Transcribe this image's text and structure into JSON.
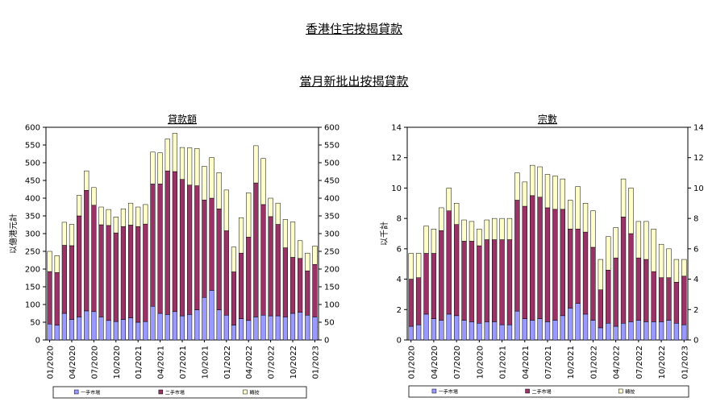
{
  "page": {
    "title": "香港住宅按揭貸款",
    "subtitle": "當月新批出按揭貸款"
  },
  "colors": {
    "first_hand": "#9999ff",
    "second_hand": "#993366",
    "refinance": "#ffffcc"
  },
  "chart_data": [
    {
      "type": "bar",
      "stacked": true,
      "title": "貸款額",
      "ylabel": "以億港元計",
      "ylim": [
        0,
        600
      ],
      "yticks": [
        0,
        50,
        100,
        150,
        200,
        250,
        300,
        350,
        400,
        450,
        500,
        550,
        600
      ],
      "categories": [
        "01/2020",
        "02/2020",
        "03/2020",
        "04/2020",
        "05/2020",
        "06/2020",
        "07/2020",
        "08/2020",
        "09/2020",
        "10/2020",
        "11/2020",
        "12/2020",
        "01/2021",
        "02/2021",
        "03/2021",
        "04/2021",
        "05/2021",
        "06/2021",
        "07/2021",
        "08/2021",
        "09/2021",
        "10/2021",
        "11/2021",
        "12/2021",
        "01/2022",
        "02/2022",
        "03/2022",
        "04/2022",
        "05/2022",
        "06/2022",
        "07/2022",
        "08/2022",
        "09/2022",
        "10/2022",
        "11/2022",
        "12/2022",
        "01/2023"
      ],
      "tick_labels": [
        "01/2020",
        "04/2020",
        "07/2020",
        "10/2020",
        "01/2021",
        "04/2021",
        "07/2021",
        "10/2021",
        "01/2022",
        "04/2022",
        "07/2022",
        "10/2022",
        "01/2023"
      ],
      "legend": [
        "一手市場",
        "二手市場",
        "轉按"
      ],
      "legend_position": "bottom",
      "series": [
        {
          "name": "一手市場",
          "values": [
            45,
            42,
            75,
            58,
            65,
            82,
            80,
            65,
            55,
            52,
            58,
            62,
            50,
            52,
            95,
            75,
            72,
            80,
            68,
            72,
            85,
            120,
            140,
            85,
            70,
            42,
            60,
            55,
            65,
            70,
            68,
            68,
            65,
            75,
            78,
            70,
            65
          ]
        },
        {
          "name": "二手市場",
          "values": [
            148,
            148,
            192,
            208,
            285,
            340,
            300,
            260,
            268,
            250,
            262,
            262,
            270,
            275,
            345,
            365,
            405,
            395,
            385,
            365,
            350,
            275,
            260,
            285,
            238,
            150,
            185,
            235,
            378,
            312,
            280,
            258,
            195,
            158,
            152,
            125,
            148
          ]
        },
        {
          "name": "轉按",
          "values": [
            57,
            48,
            65,
            60,
            58,
            55,
            50,
            50,
            45,
            45,
            50,
            62,
            55,
            55,
            90,
            88,
            90,
            108,
            90,
            105,
            105,
            95,
            115,
            102,
            115,
            70,
            100,
            125,
            105,
            130,
            52,
            60,
            80,
            100,
            50,
            50,
            52
          ]
        }
      ]
    },
    {
      "type": "bar",
      "stacked": true,
      "title": "宗數",
      "ylabel": "以千計",
      "ylim": [
        0,
        14
      ],
      "yticks": [
        0,
        2,
        4,
        6,
        8,
        10,
        12,
        14
      ],
      "categories": [
        "01/2020",
        "02/2020",
        "03/2020",
        "04/2020",
        "05/2020",
        "06/2020",
        "07/2020",
        "08/2020",
        "09/2020",
        "10/2020",
        "11/2020",
        "12/2020",
        "01/2021",
        "02/2021",
        "03/2021",
        "04/2021",
        "05/2021",
        "06/2021",
        "07/2021",
        "08/2021",
        "09/2021",
        "10/2021",
        "11/2021",
        "12/2021",
        "01/2022",
        "02/2022",
        "03/2022",
        "04/2022",
        "05/2022",
        "06/2022",
        "07/2022",
        "08/2022",
        "09/2022",
        "10/2022",
        "11/2022",
        "12/2022",
        "01/2023"
      ],
      "tick_labels": [
        "01/2020",
        "04/2020",
        "07/2020",
        "10/2020",
        "01/2021",
        "04/2021",
        "07/2021",
        "10/2021",
        "01/2022",
        "04/2022",
        "07/2022",
        "10/2022",
        "01/2023"
      ],
      "legend": [
        "一手市場",
        "二手市場",
        "轉按"
      ],
      "legend_position": "bottom",
      "series": [
        {
          "name": "一手市場",
          "values": [
            0.9,
            1.0,
            1.7,
            1.4,
            1.3,
            1.7,
            1.6,
            1.3,
            1.2,
            1.1,
            1.2,
            1.2,
            1.0,
            1.0,
            1.9,
            1.4,
            1.3,
            1.4,
            1.2,
            1.3,
            1.6,
            2.1,
            2.4,
            1.7,
            1.3,
            0.8,
            1.1,
            0.9,
            1.1,
            1.2,
            1.3,
            1.2,
            1.2,
            1.2,
            1.3,
            1.1,
            1.0
          ]
        },
        {
          "name": "二手市場",
          "values": [
            3.1,
            3.1,
            4.0,
            4.3,
            5.9,
            6.8,
            6.0,
            5.2,
            5.3,
            5.1,
            5.4,
            5.4,
            5.6,
            5.6,
            7.3,
            7.4,
            8.2,
            8.0,
            7.5,
            7.3,
            7.0,
            5.2,
            4.9,
            5.4,
            4.8,
            2.5,
            3.5,
            4.5,
            7.0,
            5.8,
            4.1,
            4.1,
            3.3,
            2.9,
            2.8,
            2.7,
            3.2
          ]
        },
        {
          "name": "轉按",
          "values": [
            1.7,
            1.6,
            1.8,
            1.6,
            1.5,
            1.5,
            1.4,
            1.4,
            1.3,
            1.1,
            1.3,
            1.4,
            1.4,
            1.4,
            1.8,
            1.6,
            2.0,
            2.0,
            2.2,
            2.2,
            2.0,
            1.9,
            2.8,
            1.9,
            2.4,
            2.0,
            2.2,
            2.0,
            2.5,
            3.0,
            2.4,
            2.5,
            2.8,
            2.2,
            1.9,
            1.5,
            1.1
          ]
        }
      ]
    }
  ]
}
